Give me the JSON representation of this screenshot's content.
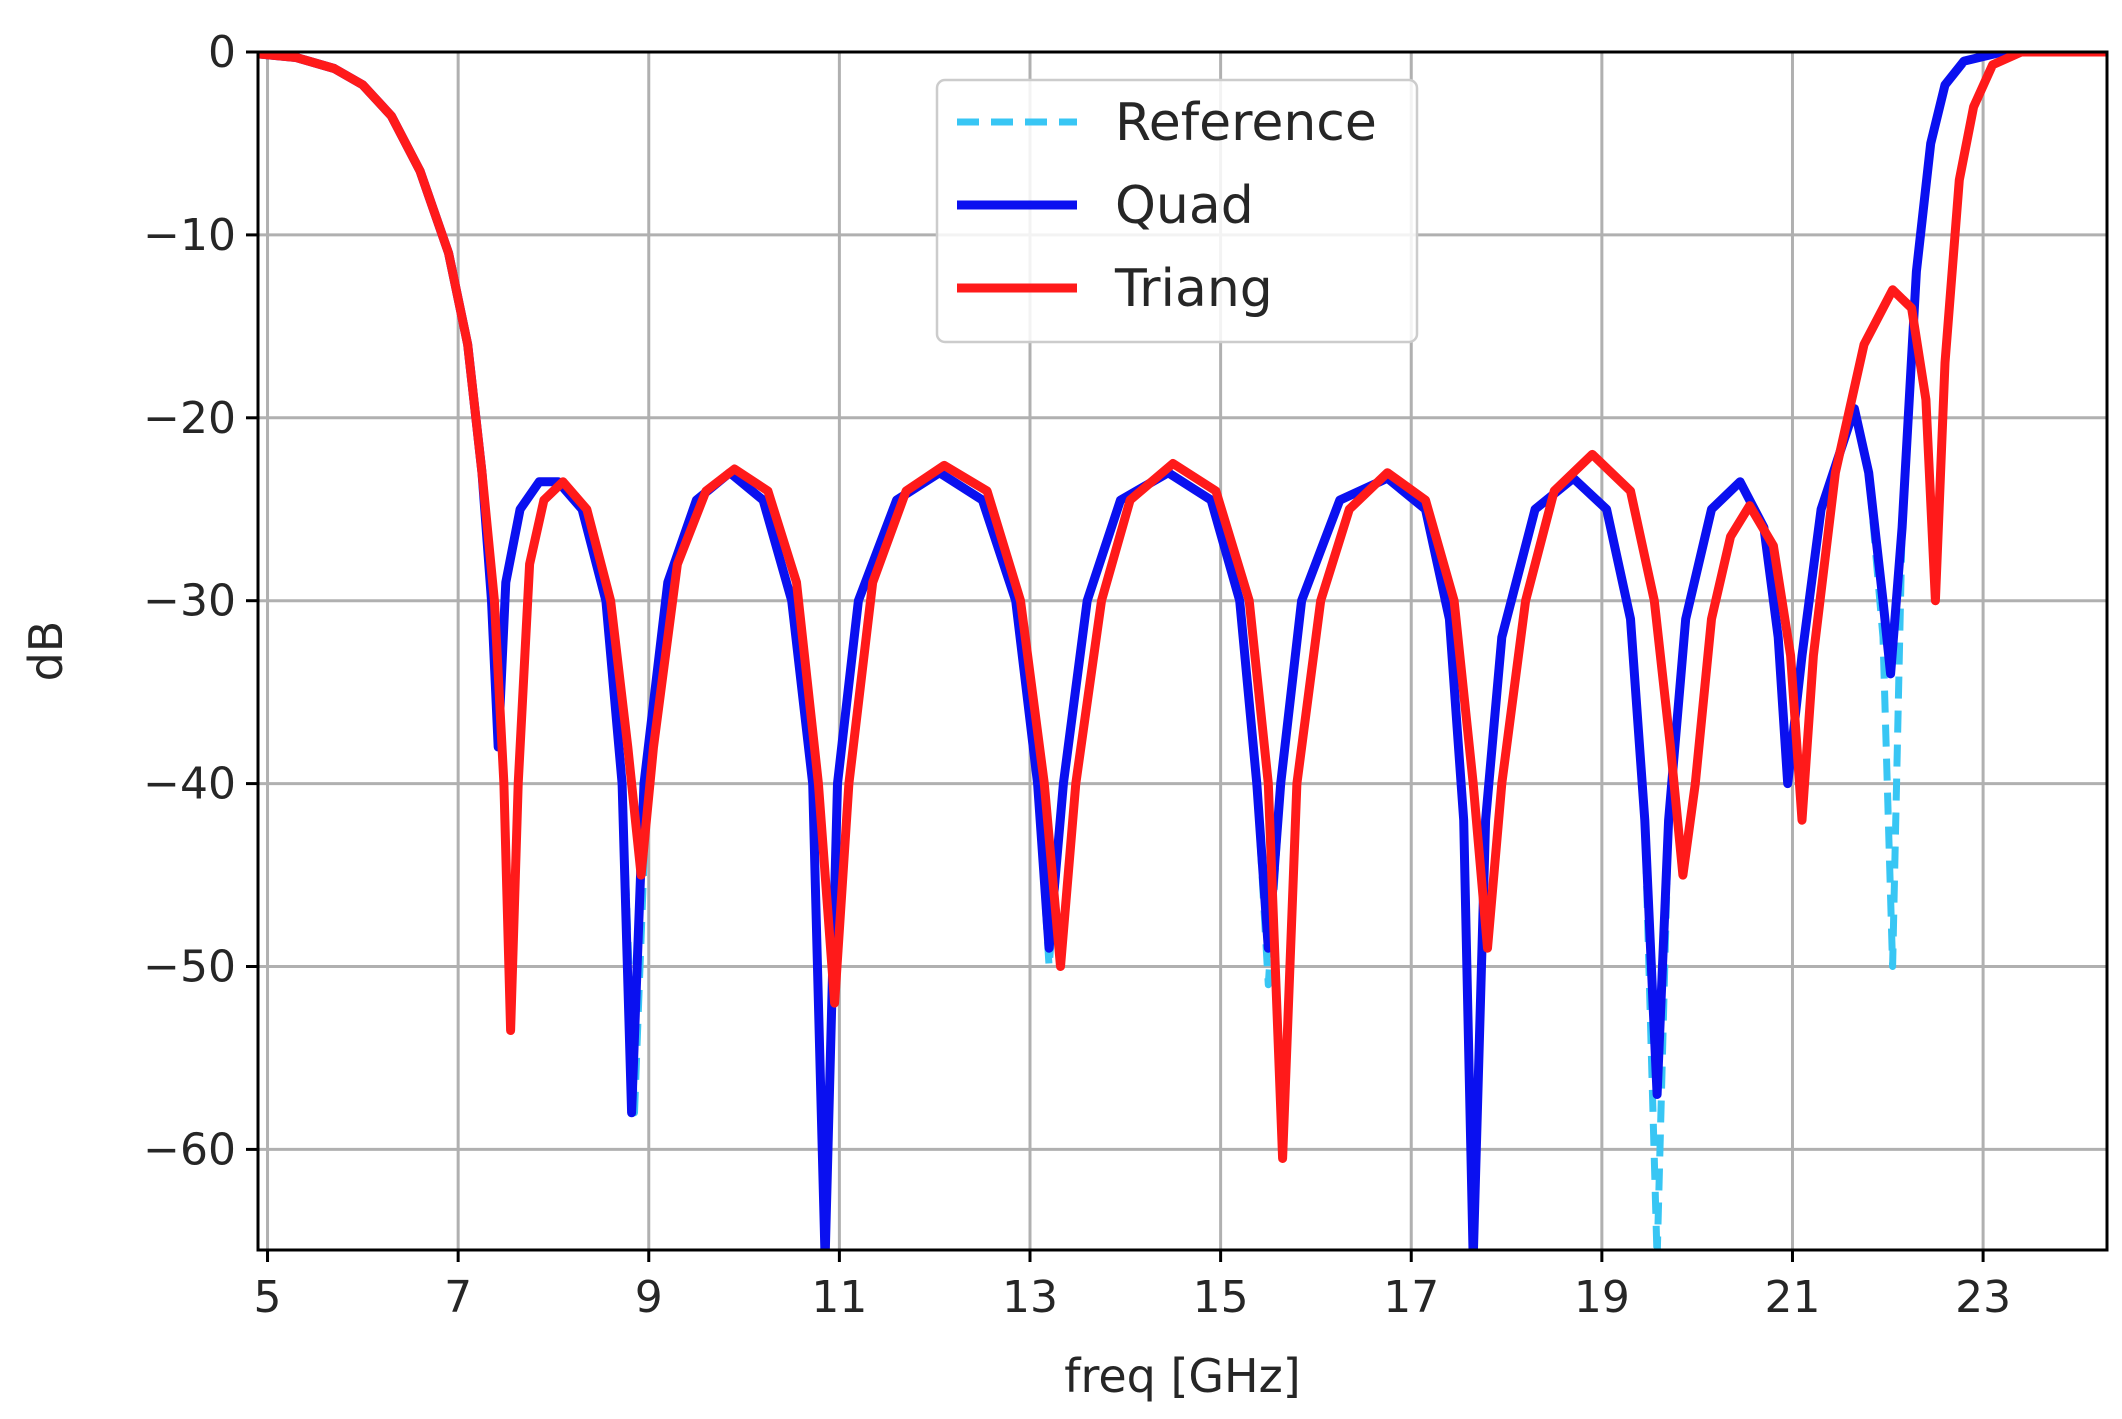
{
  "chart_data": {
    "type": "line",
    "title": "",
    "xlabel": "freq [GHz]",
    "ylabel": "dB",
    "xlim": [
      4.9,
      24.3
    ],
    "ylim": [
      -65.5,
      0
    ],
    "grid": true,
    "legend_position": "top-center",
    "xticks": [
      5,
      7,
      9,
      11,
      13,
      15,
      17,
      19,
      21,
      23
    ],
    "xtick_labels": [
      "5",
      "7",
      "9",
      "11",
      "13",
      "15",
      "17",
      "19",
      "21",
      "23"
    ],
    "yticks": [
      0,
      -10,
      -20,
      -30,
      -40,
      -50,
      -60
    ],
    "ytick_labels": [
      "0",
      "−10",
      "−20",
      "−30",
      "−40",
      "−50",
      "−60"
    ],
    "series": [
      {
        "name": "Reference",
        "color": "#38c6f4",
        "style": "dashed",
        "points": [
          [
            4.9,
            -0.1
          ],
          [
            5.3,
            -0.3
          ],
          [
            5.7,
            -0.9
          ],
          [
            6.0,
            -1.8
          ],
          [
            6.3,
            -3.5
          ],
          [
            6.6,
            -6.5
          ],
          [
            6.9,
            -11
          ],
          [
            7.1,
            -16
          ],
          [
            7.25,
            -23
          ],
          [
            7.35,
            -30
          ],
          [
            7.42,
            -38
          ],
          [
            7.5,
            -29
          ],
          [
            7.65,
            -25
          ],
          [
            7.85,
            -23.5
          ],
          [
            8.05,
            -23.5
          ],
          [
            8.3,
            -25
          ],
          [
            8.55,
            -30
          ],
          [
            8.72,
            -40
          ],
          [
            8.85,
            -58
          ],
          [
            8.98,
            -40
          ],
          [
            9.2,
            -29
          ],
          [
            9.5,
            -24.5
          ],
          [
            9.85,
            -23
          ],
          [
            10.2,
            -24.5
          ],
          [
            10.5,
            -30
          ],
          [
            10.72,
            -40
          ],
          [
            10.85,
            -66
          ],
          [
            10.98,
            -40
          ],
          [
            11.2,
            -30
          ],
          [
            11.6,
            -24.5
          ],
          [
            12.05,
            -23
          ],
          [
            12.5,
            -24.5
          ],
          [
            12.85,
            -30
          ],
          [
            13.08,
            -40
          ],
          [
            13.2,
            -50
          ],
          [
            13.35,
            -40
          ],
          [
            13.6,
            -30
          ],
          [
            13.95,
            -24.5
          ],
          [
            14.45,
            -23
          ],
          [
            14.9,
            -24.5
          ],
          [
            15.2,
            -30
          ],
          [
            15.38,
            -40
          ],
          [
            15.5,
            -51
          ],
          [
            15.63,
            -40
          ],
          [
            15.85,
            -30
          ],
          [
            16.25,
            -24.5
          ],
          [
            16.75,
            -23.3
          ],
          [
            17.15,
            -25
          ],
          [
            17.4,
            -31
          ],
          [
            17.55,
            -42
          ],
          [
            17.65,
            -66
          ],
          [
            17.78,
            -42
          ],
          [
            17.95,
            -32
          ],
          [
            18.3,
            -25
          ],
          [
            18.7,
            -23.3
          ],
          [
            19.05,
            -25
          ],
          [
            19.3,
            -31
          ],
          [
            19.45,
            -42
          ],
          [
            19.58,
            -66
          ],
          [
            19.7,
            -42
          ],
          [
            19.88,
            -31
          ],
          [
            20.15,
            -25
          ],
          [
            20.45,
            -23.5
          ],
          [
            20.7,
            -26
          ],
          [
            20.85,
            -32
          ],
          [
            20.95,
            -40
          ],
          [
            21.1,
            -33
          ],
          [
            21.3,
            -25
          ],
          [
            21.65,
            -19.5
          ],
          [
            21.8,
            -23
          ],
          [
            21.95,
            -32
          ],
          [
            22.05,
            -50
          ],
          [
            22.15,
            -26
          ],
          [
            22.3,
            -12
          ],
          [
            22.45,
            -5
          ],
          [
            22.6,
            -1.8
          ],
          [
            22.8,
            -0.5
          ],
          [
            23.2,
            0
          ],
          [
            24.3,
            0
          ]
        ]
      },
      {
        "name": "Quad",
        "color": "#0a10f0",
        "style": "solid",
        "points": [
          [
            4.9,
            -0.1
          ],
          [
            5.3,
            -0.3
          ],
          [
            5.7,
            -0.9
          ],
          [
            6.0,
            -1.8
          ],
          [
            6.3,
            -3.5
          ],
          [
            6.6,
            -6.5
          ],
          [
            6.9,
            -11
          ],
          [
            7.1,
            -16
          ],
          [
            7.25,
            -23
          ],
          [
            7.35,
            -30
          ],
          [
            7.42,
            -38
          ],
          [
            7.5,
            -29
          ],
          [
            7.65,
            -25
          ],
          [
            7.85,
            -23.5
          ],
          [
            8.05,
            -23.5
          ],
          [
            8.3,
            -25
          ],
          [
            8.55,
            -30
          ],
          [
            8.72,
            -40
          ],
          [
            8.82,
            -58
          ],
          [
            8.95,
            -40
          ],
          [
            9.2,
            -29
          ],
          [
            9.5,
            -24.5
          ],
          [
            9.85,
            -23
          ],
          [
            10.2,
            -24.5
          ],
          [
            10.5,
            -30
          ],
          [
            10.72,
            -40
          ],
          [
            10.85,
            -66
          ],
          [
            10.98,
            -40
          ],
          [
            11.2,
            -30
          ],
          [
            11.6,
            -24.5
          ],
          [
            12.05,
            -23
          ],
          [
            12.5,
            -24.5
          ],
          [
            12.85,
            -30
          ],
          [
            13.08,
            -40
          ],
          [
            13.2,
            -49
          ],
          [
            13.35,
            -40
          ],
          [
            13.6,
            -30
          ],
          [
            13.95,
            -24.5
          ],
          [
            14.45,
            -23
          ],
          [
            14.9,
            -24.5
          ],
          [
            15.2,
            -30
          ],
          [
            15.38,
            -40
          ],
          [
            15.5,
            -49
          ],
          [
            15.63,
            -40
          ],
          [
            15.85,
            -30
          ],
          [
            16.25,
            -24.5
          ],
          [
            16.75,
            -23.3
          ],
          [
            17.15,
            -25
          ],
          [
            17.4,
            -31
          ],
          [
            17.55,
            -42
          ],
          [
            17.65,
            -66
          ],
          [
            17.78,
            -42
          ],
          [
            17.95,
            -32
          ],
          [
            18.3,
            -25
          ],
          [
            18.7,
            -23.3
          ],
          [
            19.05,
            -25
          ],
          [
            19.3,
            -31
          ],
          [
            19.45,
            -42
          ],
          [
            19.58,
            -57
          ],
          [
            19.7,
            -42
          ],
          [
            19.88,
            -31
          ],
          [
            20.15,
            -25
          ],
          [
            20.45,
            -23.5
          ],
          [
            20.7,
            -26
          ],
          [
            20.85,
            -32
          ],
          [
            20.95,
            -40
          ],
          [
            21.1,
            -33
          ],
          [
            21.3,
            -25
          ],
          [
            21.65,
            -19.5
          ],
          [
            21.8,
            -23
          ],
          [
            21.95,
            -30
          ],
          [
            22.03,
            -34
          ],
          [
            22.15,
            -26
          ],
          [
            22.3,
            -12
          ],
          [
            22.45,
            -5
          ],
          [
            22.6,
            -1.8
          ],
          [
            22.8,
            -0.5
          ],
          [
            23.2,
            0
          ],
          [
            24.3,
            0
          ]
        ]
      },
      {
        "name": "Triang",
        "color": "#ff1a1a",
        "style": "solid",
        "points": [
          [
            4.9,
            -0.1
          ],
          [
            5.3,
            -0.3
          ],
          [
            5.7,
            -0.9
          ],
          [
            6.0,
            -1.8
          ],
          [
            6.3,
            -3.5
          ],
          [
            6.6,
            -6.5
          ],
          [
            6.9,
            -11
          ],
          [
            7.1,
            -16
          ],
          [
            7.25,
            -23
          ],
          [
            7.38,
            -30
          ],
          [
            7.48,
            -40
          ],
          [
            7.55,
            -53.5
          ],
          [
            7.63,
            -40
          ],
          [
            7.75,
            -28
          ],
          [
            7.9,
            -24.5
          ],
          [
            8.1,
            -23.5
          ],
          [
            8.35,
            -25
          ],
          [
            8.6,
            -30
          ],
          [
            8.78,
            -38
          ],
          [
            8.92,
            -45
          ],
          [
            9.05,
            -38
          ],
          [
            9.3,
            -28
          ],
          [
            9.6,
            -24
          ],
          [
            9.9,
            -22.8
          ],
          [
            10.25,
            -24
          ],
          [
            10.55,
            -29
          ],
          [
            10.78,
            -40
          ],
          [
            10.95,
            -52
          ],
          [
            11.1,
            -40
          ],
          [
            11.35,
            -29
          ],
          [
            11.7,
            -24
          ],
          [
            12.1,
            -22.6
          ],
          [
            12.55,
            -24
          ],
          [
            12.9,
            -30
          ],
          [
            13.15,
            -40
          ],
          [
            13.32,
            -50
          ],
          [
            13.48,
            -40
          ],
          [
            13.75,
            -30
          ],
          [
            14.05,
            -24.5
          ],
          [
            14.5,
            -22.5
          ],
          [
            14.95,
            -24
          ],
          [
            15.3,
            -30
          ],
          [
            15.5,
            -40
          ],
          [
            15.65,
            -60.5
          ],
          [
            15.8,
            -40
          ],
          [
            16.05,
            -30
          ],
          [
            16.35,
            -25
          ],
          [
            16.75,
            -23
          ],
          [
            17.15,
            -24.5
          ],
          [
            17.45,
            -30
          ],
          [
            17.65,
            -40
          ],
          [
            17.8,
            -49
          ],
          [
            17.95,
            -40
          ],
          [
            18.2,
            -30
          ],
          [
            18.5,
            -24
          ],
          [
            18.9,
            -22
          ],
          [
            19.3,
            -24
          ],
          [
            19.55,
            -30
          ],
          [
            19.72,
            -38
          ],
          [
            19.85,
            -45
          ],
          [
            19.98,
            -40
          ],
          [
            20.15,
            -31
          ],
          [
            20.35,
            -26.5
          ],
          [
            20.55,
            -24.8
          ],
          [
            20.8,
            -27
          ],
          [
            20.98,
            -33
          ],
          [
            21.1,
            -42
          ],
          [
            21.22,
            -33
          ],
          [
            21.45,
            -23
          ],
          [
            21.75,
            -16
          ],
          [
            22.05,
            -13
          ],
          [
            22.25,
            -14
          ],
          [
            22.4,
            -19
          ],
          [
            22.5,
            -30
          ],
          [
            22.6,
            -17
          ],
          [
            22.75,
            -7
          ],
          [
            22.9,
            -3
          ],
          [
            23.1,
            -0.7
          ],
          [
            23.4,
            0
          ],
          [
            24.3,
            0
          ]
        ]
      }
    ]
  }
}
